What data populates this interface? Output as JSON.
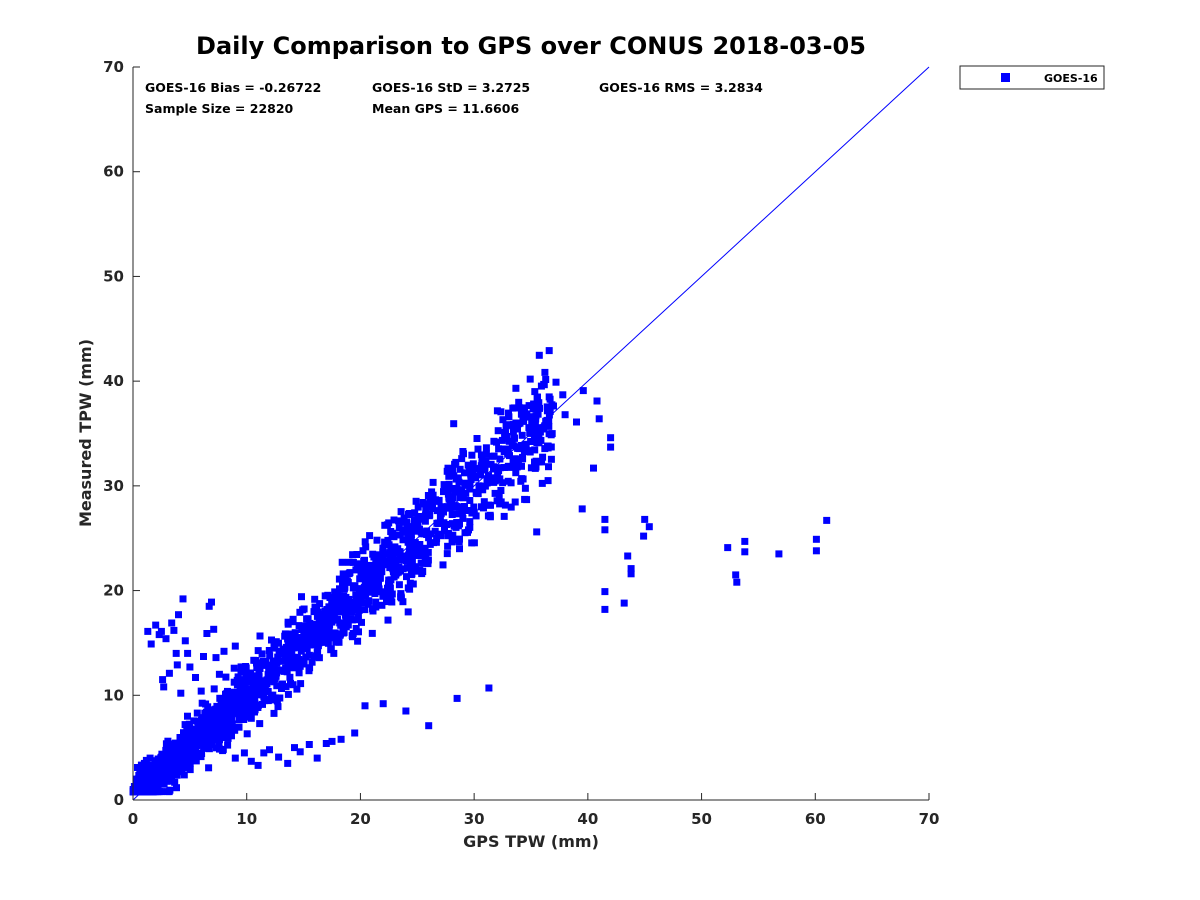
{
  "chart_data": {
    "type": "scatter",
    "title": "Daily Comparison to GPS over CONUS 2018-03-05",
    "xlabel": "GPS TPW (mm)",
    "ylabel": "Measured TPW (mm)",
    "xlim": [
      0,
      70
    ],
    "ylim": [
      0,
      70
    ],
    "xticks": [
      "0",
      "10",
      "20",
      "30",
      "40",
      "50",
      "60",
      "70"
    ],
    "yticks": [
      "0",
      "10",
      "20",
      "30",
      "40",
      "50",
      "60",
      "70"
    ],
    "grid": false,
    "legend_position": "outside-top-right",
    "stats": {
      "bias": "GOES-16 Bias = -0.26722",
      "std": "GOES-16 StD = 3.2725",
      "rms": "GOES-16 RMS = 3.2834",
      "sample_size": "Sample Size = 22820",
      "mean_gps": "Mean GPS = 11.6606"
    },
    "reference_line": {
      "name": "1:1 line",
      "x": [
        0,
        70
      ],
      "y": [
        0,
        70
      ],
      "color": "#0000ff"
    },
    "series": [
      {
        "name": "GOES-16",
        "color": "#0000ff",
        "marker": "square",
        "main_cloud": {
          "x_range": [
            0,
            37
          ],
          "y_slope": 1.0,
          "y_noise": 1.8,
          "n": 1800
        },
        "points": [
          [
            0.2,
            1.2
          ],
          [
            0.3,
            2.0
          ],
          [
            0.4,
            3.1
          ],
          [
            0.5,
            1.5
          ],
          [
            0.6,
            2.8
          ],
          [
            0.8,
            1.9
          ],
          [
            1.0,
            3.5
          ],
          [
            1.2,
            2.2
          ],
          [
            1.5,
            4.0
          ],
          [
            1.3,
            16.1
          ],
          [
            1.6,
            14.9
          ],
          [
            2.0,
            16.7
          ],
          [
            2.3,
            15.8
          ],
          [
            2.5,
            16.1
          ],
          [
            2.7,
            10.8
          ],
          [
            2.6,
            11.5
          ],
          [
            2.9,
            15.4
          ],
          [
            3.2,
            12.1
          ],
          [
            3.4,
            16.9
          ],
          [
            3.6,
            16.2
          ],
          [
            3.8,
            14.0
          ],
          [
            3.9,
            12.9
          ],
          [
            4.0,
            17.7
          ],
          [
            4.2,
            10.2
          ],
          [
            4.4,
            19.2
          ],
          [
            4.6,
            15.2
          ],
          [
            4.8,
            14.0
          ],
          [
            5.0,
            12.7
          ],
          [
            5.5,
            11.7
          ],
          [
            6.0,
            10.4
          ],
          [
            6.2,
            13.7
          ],
          [
            6.5,
            15.9
          ],
          [
            6.7,
            18.5
          ],
          [
            6.9,
            18.9
          ],
          [
            7.1,
            16.3
          ],
          [
            7.3,
            13.6
          ],
          [
            7.6,
            12.0
          ],
          [
            8.0,
            14.2
          ],
          [
            9.0,
            14.7
          ],
          [
            9.5,
            12.2
          ],
          [
            9.0,
            4.0
          ],
          [
            9.8,
            4.5
          ],
          [
            10.4,
            3.7
          ],
          [
            11.0,
            3.3
          ],
          [
            11.5,
            4.5
          ],
          [
            12.0,
            4.8
          ],
          [
            12.8,
            4.1
          ],
          [
            13.6,
            3.5
          ],
          [
            14.2,
            5.0
          ],
          [
            14.7,
            4.6
          ],
          [
            15.5,
            5.3
          ],
          [
            16.2,
            4.0
          ],
          [
            17.0,
            5.4
          ],
          [
            17.5,
            5.6
          ],
          [
            18.3,
            5.8
          ],
          [
            19.5,
            6.4
          ],
          [
            20.4,
            9.0
          ],
          [
            22.0,
            9.2
          ],
          [
            24.0,
            8.5
          ],
          [
            26.0,
            7.1
          ],
          [
            28.5,
            9.7
          ],
          [
            31.3,
            10.7
          ],
          [
            35.5,
            25.6
          ],
          [
            36.5,
            30.5
          ],
          [
            37.2,
            39.9
          ],
          [
            37.8,
            38.7
          ],
          [
            38.0,
            36.8
          ],
          [
            39.0,
            36.1
          ],
          [
            39.6,
            39.1
          ],
          [
            39.5,
            27.8
          ],
          [
            40.5,
            31.7
          ],
          [
            40.8,
            38.1
          ],
          [
            41.0,
            36.4
          ],
          [
            41.5,
            26.8
          ],
          [
            41.5,
            25.8
          ],
          [
            41.5,
            19.9
          ],
          [
            41.5,
            18.2
          ],
          [
            42.0,
            33.7
          ],
          [
            42.0,
            34.6
          ],
          [
            43.2,
            18.8
          ],
          [
            43.5,
            23.3
          ],
          [
            43.8,
            22.1
          ],
          [
            43.8,
            21.6
          ],
          [
            44.9,
            25.2
          ],
          [
            45.0,
            26.8
          ],
          [
            45.4,
            26.1
          ],
          [
            52.3,
            24.1
          ],
          [
            53.0,
            21.5
          ],
          [
            53.1,
            20.8
          ],
          [
            53.8,
            24.7
          ],
          [
            53.8,
            23.7
          ],
          [
            56.8,
            23.5
          ],
          [
            60.1,
            24.9
          ],
          [
            60.1,
            23.8
          ],
          [
            61.0,
            26.7
          ]
        ]
      }
    ]
  }
}
